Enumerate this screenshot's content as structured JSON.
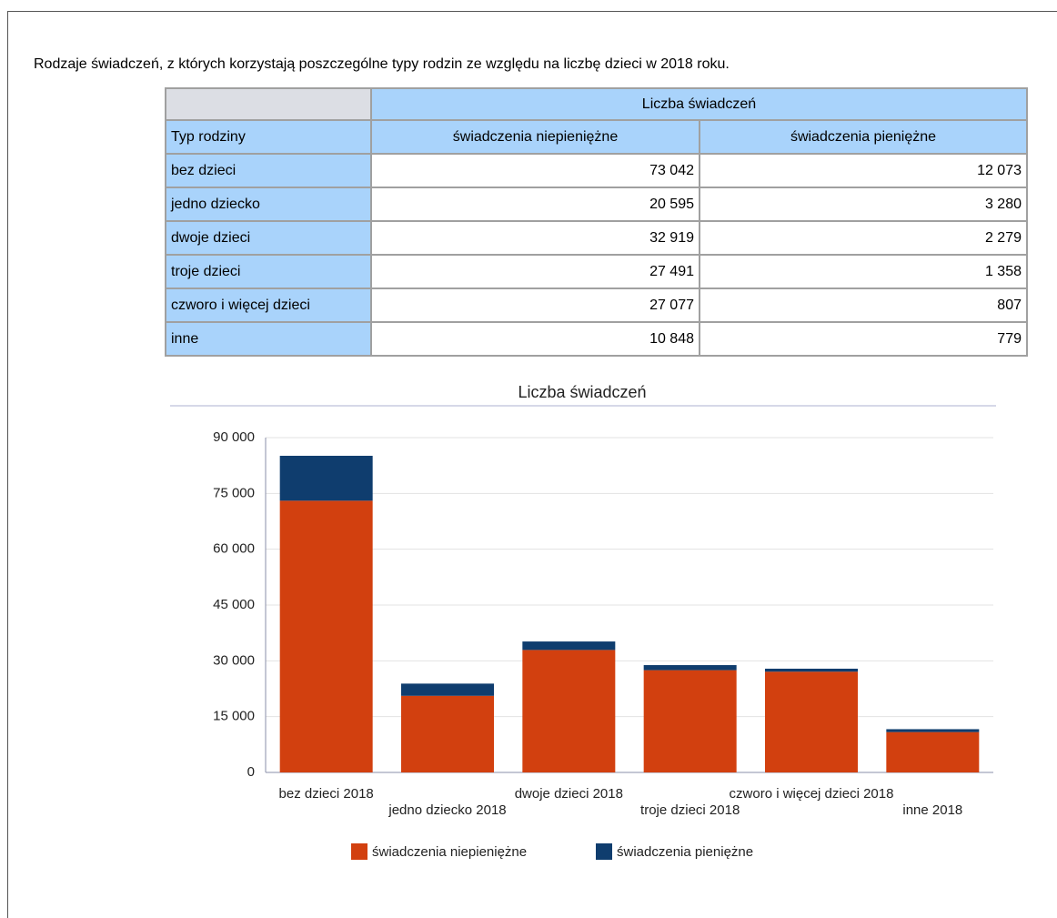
{
  "heading": "Rodzaje świadczeń, z których korzystają poszczególne typy rodzin ze względu na liczbę dzieci w 2018 roku.",
  "table": {
    "group_header": "Liczba świadczeń",
    "columns": [
      "Typ rodziny",
      "świadczenia niepieniężne",
      "świadczenia pieniężne"
    ],
    "rows": [
      [
        "bez dzieci",
        "73 042",
        "12 073"
      ],
      [
        "jedno dziecko",
        "20 595",
        "3 280"
      ],
      [
        "dwoje dzieci",
        "32 919",
        "2 279"
      ],
      [
        "troje dzieci",
        "27 491",
        "1 358"
      ],
      [
        "czworo i więcej dzieci",
        "27 077",
        "807"
      ],
      [
        "inne",
        "10 848",
        "779"
      ]
    ]
  },
  "chart_data": {
    "type": "stacked_bar",
    "title": "Liczba świadczeń",
    "categories": [
      "bez dzieci 2018",
      "jedno dziecko 2018",
      "dwoje dzieci 2018",
      "troje dzieci 2018",
      "czworo i więcej dzieci 2018",
      "inne 2018"
    ],
    "series": [
      {
        "name": "świadczenia niepieniężne",
        "color": "#d2400f",
        "values": [
          73042,
          20595,
          32919,
          27491,
          27077,
          10848
        ]
      },
      {
        "name": "świadczenia pieniężne",
        "color": "#0f3d6e",
        "values": [
          12073,
          3280,
          2279,
          1358,
          807,
          779
        ]
      }
    ],
    "ylim": [
      0,
      90000
    ],
    "yticks": [
      0,
      {
        "value": 15000,
        "label": "15 000"
      },
      {
        "value": 30000,
        "label": "30 000"
      },
      {
        "value": 45000,
        "label": "45 000"
      },
      {
        "value": 60000,
        "label": "60 000"
      },
      {
        "value": 75000,
        "label": "75 000"
      },
      {
        "value": 90000,
        "label": "90 000"
      }
    ],
    "grid": true,
    "legend": "bottom"
  }
}
